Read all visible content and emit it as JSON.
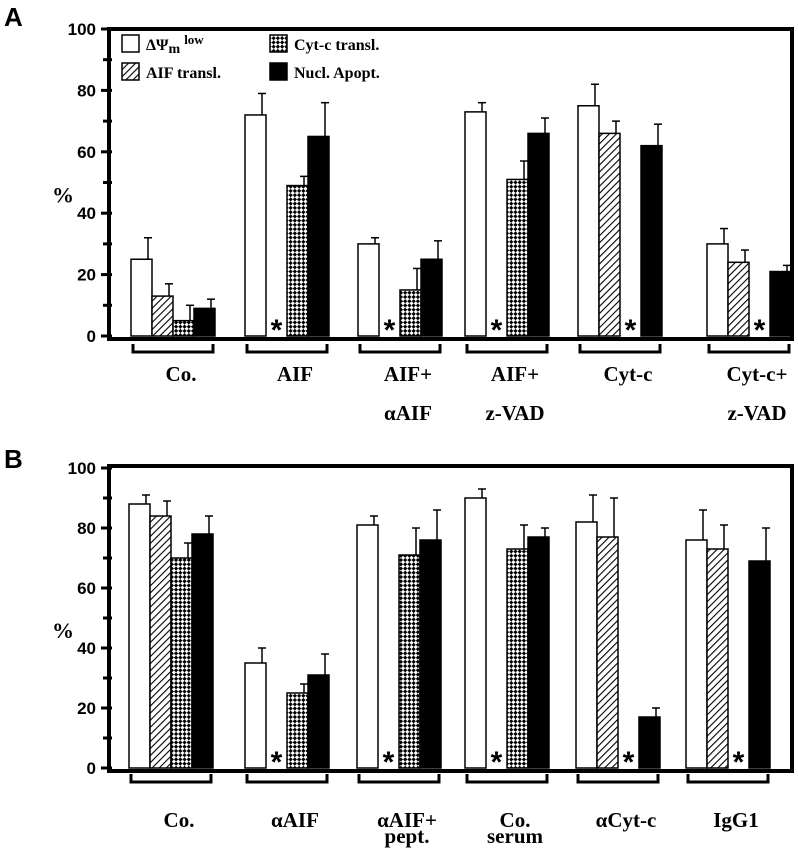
{
  "chart_data": [
    {
      "panel": "A",
      "type": "bar",
      "ylabel": "%",
      "ylim": [
        0,
        100
      ],
      "yticks": [
        0,
        20,
        40,
        60,
        80,
        100
      ],
      "categories": [
        "Co.",
        "AIF",
        "AIF+\nαAIF",
        "AIF+\nz-VAD",
        "Cyt-c",
        "Cyt-c+\nz-VAD"
      ],
      "legend": [
        "ΔΨm low",
        "AIF transl.",
        "Cyt-c transl.",
        "Nucl. Apopt."
      ],
      "series": [
        {
          "name": "ΔΨm low",
          "pattern": "open",
          "values": [
            25,
            72,
            30,
            73,
            75,
            30
          ],
          "errors": [
            7,
            7,
            2,
            3,
            7,
            5
          ]
        },
        {
          "name": "AIF transl.",
          "pattern": "hatched",
          "values": [
            13,
            null,
            null,
            null,
            66,
            24
          ],
          "errors": [
            4,
            0,
            0,
            0,
            4,
            4
          ]
        },
        {
          "name": "Cyt-c transl.",
          "pattern": "checked",
          "values": [
            5,
            49,
            15,
            51,
            null,
            null
          ],
          "errors": [
            5,
            3,
            7,
            6,
            0,
            0
          ]
        },
        {
          "name": "Nucl. Apopt.",
          "pattern": "solid",
          "values": [
            9,
            65,
            25,
            66,
            62,
            21
          ],
          "errors": [
            3,
            11,
            6,
            5,
            7,
            2
          ]
        }
      ],
      "not_determined_mark": "*"
    },
    {
      "panel": "B",
      "type": "bar",
      "ylabel": "%",
      "ylim": [
        0,
        100
      ],
      "yticks": [
        0,
        20,
        40,
        60,
        80,
        100
      ],
      "categories": [
        "Co.",
        "αAIF",
        "αAIF+\npept.",
        "Co.\nserum",
        "αCyt-c",
        "IgG1"
      ],
      "series": [
        {
          "name": "ΔΨm low",
          "pattern": "open",
          "values": [
            88,
            35,
            81,
            90,
            82,
            76
          ],
          "errors": [
            3,
            5,
            3,
            3,
            9,
            10
          ]
        },
        {
          "name": "AIF transl.",
          "pattern": "hatched",
          "values": [
            84,
            null,
            null,
            null,
            77,
            73
          ],
          "errors": [
            5,
            0,
            0,
            0,
            13,
            8
          ]
        },
        {
          "name": "Cyt-c transl.",
          "pattern": "checked",
          "values": [
            70,
            25,
            71,
            73,
            null,
            null
          ],
          "errors": [
            5,
            3,
            9,
            8,
            0,
            0
          ]
        },
        {
          "name": "Nucl. Apopt.",
          "pattern": "solid",
          "values": [
            78,
            31,
            76,
            77,
            17,
            69
          ],
          "errors": [
            6,
            7,
            10,
            3,
            3,
            11
          ]
        }
      ],
      "not_determined_mark": "*"
    }
  ]
}
